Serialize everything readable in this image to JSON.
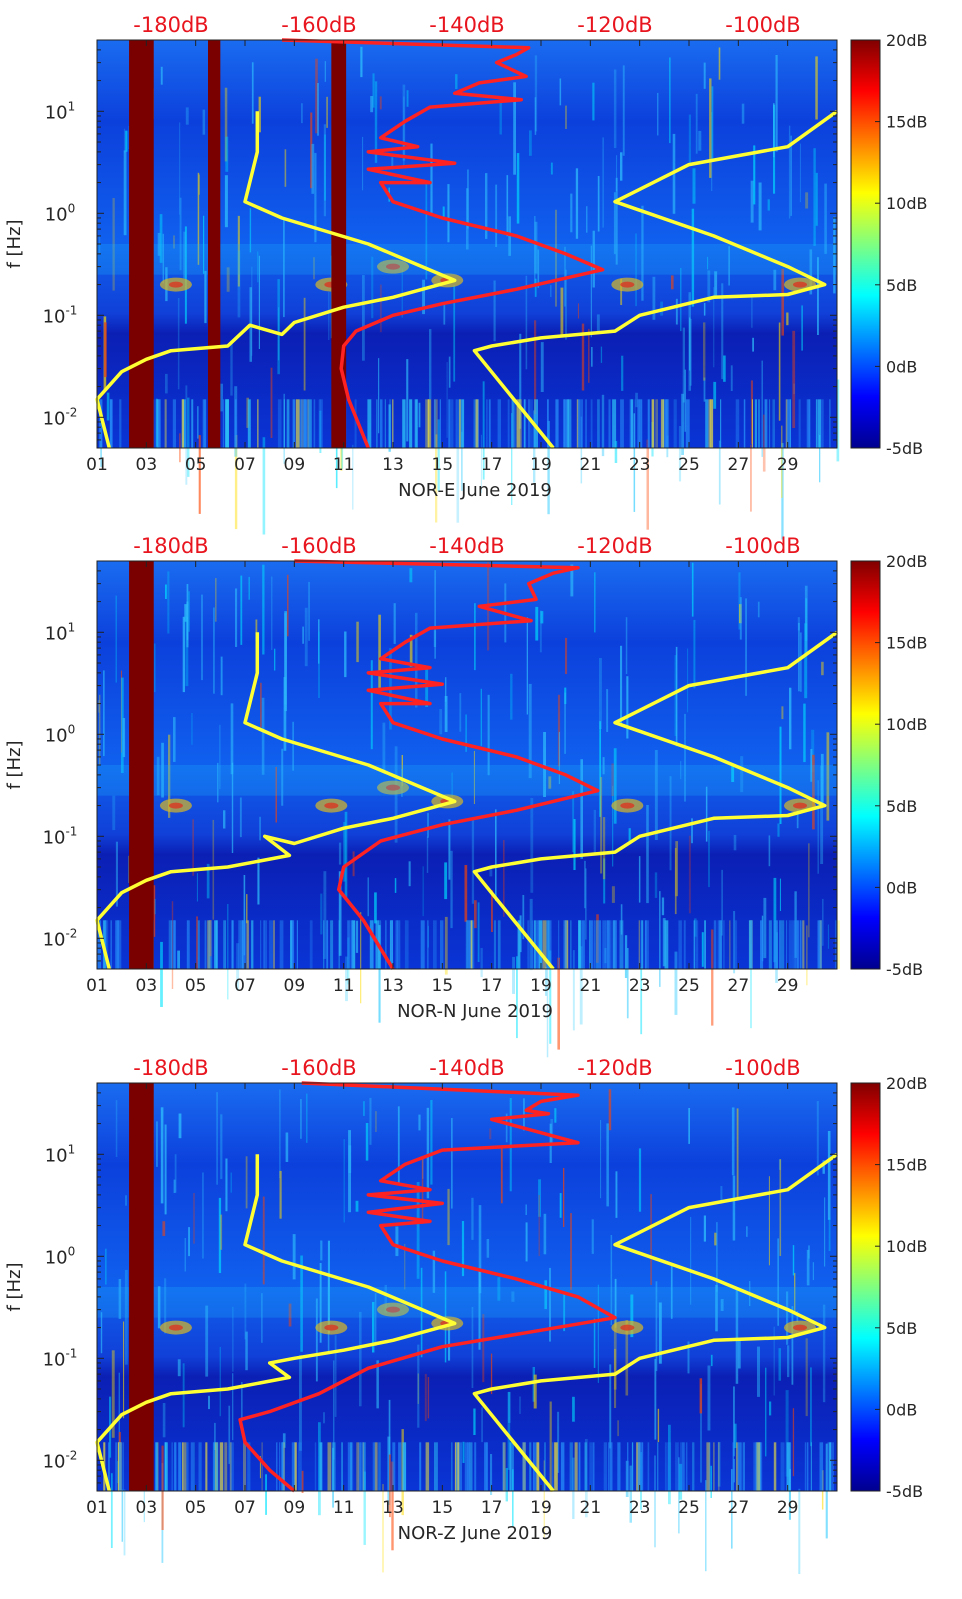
{
  "chart_data": [
    {
      "type": "heatmap",
      "station": "NOR-E",
      "xlabel": "NOR-E June 2019",
      "ylabel": "f [Hz]",
      "xticks": [
        "01",
        "03",
        "05",
        "07",
        "09",
        "11",
        "13",
        "15",
        "17",
        "19",
        "21",
        "23",
        "25",
        "27",
        "29"
      ],
      "xtick_values": [
        1,
        3,
        5,
        7,
        9,
        11,
        13,
        15,
        17,
        19,
        21,
        23,
        25,
        27,
        29
      ],
      "xlim": [
        1,
        31
      ],
      "ylim": [
        0.005,
        50
      ],
      "yscale": "log",
      "yticks": [
        {
          "v": 0.01,
          "b": "10",
          "e": "-2"
        },
        {
          "v": 0.1,
          "b": "10",
          "e": "-1"
        },
        {
          "v": 1,
          "b": "10",
          "e": "0"
        },
        {
          "v": 10,
          "b": "10",
          "e": "1"
        }
      ],
      "top_axis_labels": [
        "-180dB",
        "-160dB",
        "-140dB",
        "-120dB",
        "-100dB"
      ],
      "top_axis_values": [
        -180,
        -160,
        -140,
        -120,
        -100
      ],
      "top_axis_range": [
        -190,
        -90
      ],
      "colorbar": {
        "labels": [
          "20dB",
          "15dB",
          "10dB",
          "5dB",
          "0dB",
          "-5dB"
        ],
        "values": [
          20,
          15,
          10,
          5,
          0,
          -5
        ],
        "range": [
          -5,
          20
        ]
      },
      "data_gaps_days": [
        [
          2.3,
          3.3
        ],
        [
          5.5,
          6.0
        ],
        [
          10.5,
          11.1
        ]
      ],
      "series": [
        {
          "name": "yellow-noise-curve-left",
          "color": "#ffff33",
          "points": [
            [
              7.5,
              10
            ],
            [
              7.5,
              4
            ],
            [
              7.0,
              1.3
            ],
            [
              8.5,
              0.9
            ],
            [
              12,
              0.5
            ],
            [
              15.5,
              0.22
            ],
            [
              13,
              0.15
            ],
            [
              11,
              0.12
            ],
            [
              9,
              0.085
            ],
            [
              8.5,
              0.065
            ],
            [
              7.2,
              0.08
            ],
            [
              6.3,
              0.05
            ],
            [
              4.0,
              0.045
            ],
            [
              3.0,
              0.037
            ],
            [
              2.0,
              0.028
            ],
            [
              1.0,
              0.015
            ],
            [
              1.5,
              0.005
            ]
          ]
        },
        {
          "name": "yellow-noise-curve-right",
          "color": "#ffff33",
          "points": [
            [
              31,
              10
            ],
            [
              29,
              4.5
            ],
            [
              25,
              3
            ],
            [
              22,
              1.3
            ],
            [
              26,
              0.6
            ],
            [
              29,
              0.3
            ],
            [
              30.5,
              0.2
            ],
            [
              29,
              0.16
            ],
            [
              26,
              0.15
            ],
            [
              23,
              0.1
            ],
            [
              22,
              0.07
            ],
            [
              19,
              0.06
            ],
            [
              17,
              0.05
            ],
            [
              16.3,
              0.045
            ],
            [
              19.5,
              0.005
            ]
          ]
        },
        {
          "name": "red-noise-curve",
          "color": "#ff2222",
          "points": [
            [
              8.5,
              50
            ],
            [
              18.5,
              42
            ],
            [
              18.0,
              36
            ],
            [
              17.2,
              30
            ],
            [
              18.4,
              22
            ],
            [
              16.5,
              19
            ],
            [
              15.5,
              15
            ],
            [
              18.2,
              13
            ],
            [
              14.5,
              11
            ],
            [
              13.5,
              8
            ],
            [
              12.5,
              5.5
            ],
            [
              14.0,
              4.5
            ],
            [
              12.0,
              4
            ],
            [
              15.5,
              3.1
            ],
            [
              12.0,
              2.7
            ],
            [
              14.5,
              2.0
            ],
            [
              12.5,
              2.0
            ],
            [
              13.0,
              1.3
            ],
            [
              15,
              0.9
            ],
            [
              18,
              0.6
            ],
            [
              20,
              0.4
            ],
            [
              21.5,
              0.28
            ],
            [
              18.0,
              0.18
            ],
            [
              15,
              0.13
            ],
            [
              13,
              0.1
            ],
            [
              11.5,
              0.07
            ],
            [
              11.0,
              0.05
            ],
            [
              10.9,
              0.03
            ],
            [
              11.2,
              0.015
            ],
            [
              12,
              0.005
            ]
          ]
        }
      ]
    },
    {
      "type": "heatmap",
      "station": "NOR-N",
      "xlabel": "NOR-N June 2019",
      "ylabel": "f [Hz]",
      "xticks": [
        "01",
        "03",
        "05",
        "07",
        "09",
        "11",
        "13",
        "15",
        "17",
        "19",
        "21",
        "23",
        "25",
        "27",
        "29"
      ],
      "xtick_values": [
        1,
        3,
        5,
        7,
        9,
        11,
        13,
        15,
        17,
        19,
        21,
        23,
        25,
        27,
        29
      ],
      "xlim": [
        1,
        31
      ],
      "ylim": [
        0.005,
        50
      ],
      "yscale": "log",
      "yticks": [
        {
          "v": 0.01,
          "b": "10",
          "e": "-2"
        },
        {
          "v": 0.1,
          "b": "10",
          "e": "-1"
        },
        {
          "v": 1,
          "b": "10",
          "e": "0"
        },
        {
          "v": 10,
          "b": "10",
          "e": "1"
        }
      ],
      "top_axis_labels": [
        "-180dB",
        "-160dB",
        "-140dB",
        "-120dB",
        "-100dB"
      ],
      "top_axis_values": [
        -180,
        -160,
        -140,
        -120,
        -100
      ],
      "top_axis_range": [
        -190,
        -90
      ],
      "colorbar": {
        "labels": [
          "20dB",
          "15dB",
          "10dB",
          "5dB",
          "0dB",
          "-5dB"
        ],
        "values": [
          20,
          15,
          10,
          5,
          0,
          -5
        ],
        "range": [
          -5,
          20
        ]
      },
      "data_gaps_days": [
        [
          2.3,
          3.3
        ]
      ],
      "series": [
        {
          "name": "yellow-noise-curve-left",
          "color": "#ffff33",
          "points": [
            [
              7.5,
              10
            ],
            [
              7.5,
              4
            ],
            [
              7.0,
              1.3
            ],
            [
              8.5,
              0.9
            ],
            [
              12,
              0.5
            ],
            [
              15.5,
              0.22
            ],
            [
              13,
              0.15
            ],
            [
              11,
              0.12
            ],
            [
              9,
              0.085
            ],
            [
              7.8,
              0.1
            ],
            [
              8.8,
              0.065
            ],
            [
              6.3,
              0.05
            ],
            [
              4.0,
              0.045
            ],
            [
              3.0,
              0.037
            ],
            [
              2.0,
              0.028
            ],
            [
              1.0,
              0.015
            ],
            [
              1.5,
              0.005
            ]
          ]
        },
        {
          "name": "yellow-noise-curve-right",
          "color": "#ffff33",
          "points": [
            [
              31,
              10
            ],
            [
              29,
              4.5
            ],
            [
              25,
              3
            ],
            [
              22,
              1.3
            ],
            [
              26,
              0.6
            ],
            [
              29,
              0.3
            ],
            [
              30.5,
              0.2
            ],
            [
              29,
              0.16
            ],
            [
              26,
              0.15
            ],
            [
              23,
              0.1
            ],
            [
              22,
              0.07
            ],
            [
              19,
              0.06
            ],
            [
              17,
              0.05
            ],
            [
              16.3,
              0.045
            ],
            [
              19.5,
              0.005
            ]
          ]
        },
        {
          "name": "red-noise-curve",
          "color": "#ff2222",
          "points": [
            [
              9,
              50
            ],
            [
              20.5,
              43
            ],
            [
              19.5,
              38
            ],
            [
              18.5,
              30
            ],
            [
              18.8,
              21
            ],
            [
              16.5,
              18
            ],
            [
              18.6,
              13
            ],
            [
              14.5,
              11
            ],
            [
              13.5,
              8
            ],
            [
              12.5,
              5.5
            ],
            [
              14.5,
              4.5
            ],
            [
              12.0,
              4
            ],
            [
              15.0,
              3.1
            ],
            [
              12.0,
              2.7
            ],
            [
              14.5,
              2.0
            ],
            [
              12.5,
              2.0
            ],
            [
              13.0,
              1.3
            ],
            [
              15,
              0.9
            ],
            [
              18,
              0.6
            ],
            [
              20,
              0.4
            ],
            [
              21.3,
              0.28
            ],
            [
              18.0,
              0.18
            ],
            [
              15,
              0.13
            ],
            [
              12.5,
              0.09
            ],
            [
              11.0,
              0.05
            ],
            [
              10.8,
              0.03
            ],
            [
              11.8,
              0.015
            ],
            [
              13,
              0.005
            ]
          ]
        }
      ]
    },
    {
      "type": "heatmap",
      "station": "NOR-Z",
      "xlabel": "NOR-Z June 2019",
      "ylabel": "f [Hz]",
      "xticks": [
        "01",
        "03",
        "05",
        "07",
        "09",
        "11",
        "13",
        "15",
        "17",
        "19",
        "21",
        "23",
        "25",
        "27",
        "29"
      ],
      "xtick_values": [
        1,
        3,
        5,
        7,
        9,
        11,
        13,
        15,
        17,
        19,
        21,
        23,
        25,
        27,
        29
      ],
      "xlim": [
        1,
        31
      ],
      "ylim": [
        0.005,
        50
      ],
      "yscale": "log",
      "yticks": [
        {
          "v": 0.01,
          "b": "10",
          "e": "-2"
        },
        {
          "v": 0.1,
          "b": "10",
          "e": "-1"
        },
        {
          "v": 1,
          "b": "10",
          "e": "0"
        },
        {
          "v": 10,
          "b": "10",
          "e": "1"
        }
      ],
      "top_axis_labels": [
        "-180dB",
        "-160dB",
        "-140dB",
        "-120dB",
        "-100dB"
      ],
      "top_axis_values": [
        -180,
        -160,
        -140,
        -120,
        -100
      ],
      "top_axis_range": [
        -190,
        -90
      ],
      "colorbar": {
        "labels": [
          "20dB",
          "15dB",
          "10dB",
          "5dB",
          "0dB",
          "-5dB"
        ],
        "values": [
          20,
          15,
          10,
          5,
          0,
          -5
        ],
        "range": [
          -5,
          20
        ]
      },
      "data_gaps_days": [
        [
          2.3,
          3.3
        ]
      ],
      "series": [
        {
          "name": "yellow-noise-curve-left",
          "color": "#ffff33",
          "points": [
            [
              7.5,
              10
            ],
            [
              7.5,
              4
            ],
            [
              7.0,
              1.3
            ],
            [
              8.5,
              0.9
            ],
            [
              12,
              0.5
            ],
            [
              15.5,
              0.22
            ],
            [
              13,
              0.15
            ],
            [
              11,
              0.12
            ],
            [
              9,
              0.1
            ],
            [
              8,
              0.09
            ],
            [
              8.8,
              0.065
            ],
            [
              6.3,
              0.05
            ],
            [
              4.0,
              0.045
            ],
            [
              3.0,
              0.037
            ],
            [
              2.0,
              0.028
            ],
            [
              1.0,
              0.015
            ],
            [
              1.5,
              0.005
            ]
          ]
        },
        {
          "name": "yellow-noise-curve-right",
          "color": "#ffff33",
          "points": [
            [
              31,
              10
            ],
            [
              29,
              4.5
            ],
            [
              25,
              3
            ],
            [
              22,
              1.3
            ],
            [
              26,
              0.6
            ],
            [
              29,
              0.3
            ],
            [
              30.5,
              0.2
            ],
            [
              29,
              0.16
            ],
            [
              26,
              0.15
            ],
            [
              23,
              0.1
            ],
            [
              22,
              0.07
            ],
            [
              19,
              0.06
            ],
            [
              17,
              0.05
            ],
            [
              16.3,
              0.045
            ],
            [
              19.5,
              0.005
            ]
          ]
        },
        {
          "name": "red-noise-curve",
          "color": "#ff2222",
          "points": [
            [
              9.3,
              50
            ],
            [
              20.5,
              38
            ],
            [
              19.0,
              33
            ],
            [
              18.4,
              27
            ],
            [
              19.3,
              25
            ],
            [
              17.0,
              22
            ],
            [
              20.5,
              13
            ],
            [
              15.0,
              11
            ],
            [
              13.5,
              8
            ],
            [
              12.5,
              5.5
            ],
            [
              14.5,
              4.5
            ],
            [
              12.0,
              4
            ],
            [
              15.0,
              3.3
            ],
            [
              12.0,
              2.7
            ],
            [
              14.5,
              2.2
            ],
            [
              12.5,
              2.0
            ],
            [
              13.0,
              1.3
            ],
            [
              15,
              0.9
            ],
            [
              18,
              0.6
            ],
            [
              20.5,
              0.4
            ],
            [
              22.0,
              0.25
            ],
            [
              18.5,
              0.18
            ],
            [
              15,
              0.13
            ],
            [
              12,
              0.08
            ],
            [
              10,
              0.045
            ],
            [
              8,
              0.03
            ],
            [
              6.8,
              0.025
            ],
            [
              7.0,
              0.015
            ],
            [
              8.0,
              0.008
            ],
            [
              9.0,
              0.005
            ]
          ]
        }
      ]
    }
  ]
}
